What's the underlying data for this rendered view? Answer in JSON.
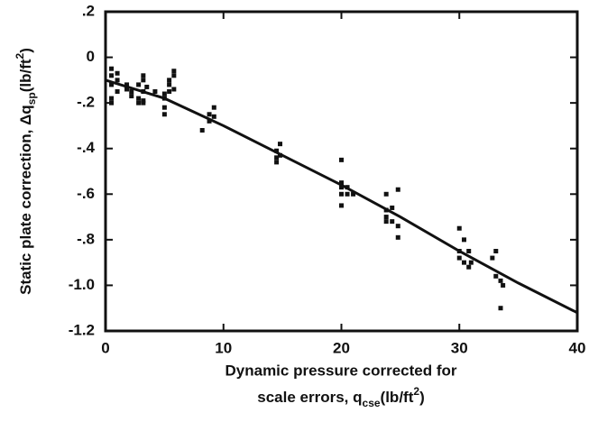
{
  "chart_data": {
    "type": "scatter",
    "ylabel_parts": [
      "Static plate correction, Δq",
      "sp",
      "(lb/ft",
      "2",
      ")"
    ],
    "xlabel_line1": "Dynamic pressure corrected for",
    "xlabel_parts": [
      "scale errors, q",
      "cse",
      "(lb/ft",
      "2",
      ")"
    ],
    "xlim": [
      0,
      40
    ],
    "ylim": [
      -1.2,
      0.2
    ],
    "xticks": [
      0,
      10,
      20,
      30,
      40
    ],
    "yticks": [
      {
        "value": 0.2,
        "label": ".2"
      },
      0,
      {
        "value": -0.2,
        "label": "-.2"
      },
      {
        "value": -0.4,
        "label": "-.4"
      },
      {
        "value": -0.6,
        "label": "-.6"
      },
      {
        "value": -0.8,
        "label": "-.8"
      },
      {
        "value": -1.0,
        "label": "-1.0"
      },
      {
        "value": -1.2,
        "label": "-1.2"
      }
    ],
    "color": "#111111",
    "points": {
      "x": [
        0.5,
        0.5,
        0.5,
        0.5,
        0.5,
        1,
        1,
        1,
        1.8,
        1.8,
        2.2,
        2.2,
        2.8,
        2.8,
        2.8,
        3.2,
        3.2,
        3.2,
        3.2,
        3.2,
        3.5,
        4.2,
        5,
        5,
        5,
        5,
        5.4,
        5.4,
        5.4,
        5.8,
        5.8,
        5.8,
        8.2,
        8.8,
        8.8,
        9.2,
        9.2,
        14.5,
        14.5,
        14.5,
        14.8,
        14.8,
        20,
        20,
        20,
        20,
        20,
        20.5,
        20.5,
        21,
        23.8,
        23.8,
        23.8,
        23.8,
        24.3,
        24.3,
        24.8,
        24.8,
        24.8,
        30,
        30,
        30,
        30.4,
        30.4,
        30.8,
        30.8,
        31,
        32.8,
        33.1,
        33.1,
        33.5,
        33.5,
        33.7
      ],
      "y": [
        -0.05,
        -0.08,
        -0.12,
        -0.18,
        -0.2,
        -0.07,
        -0.1,
        -0.15,
        -0.12,
        -0.14,
        -0.17,
        -0.15,
        -0.12,
        -0.2,
        -0.18,
        -0.08,
        -0.1,
        -0.15,
        -0.19,
        -0.2,
        -0.13,
        -0.15,
        -0.18,
        -0.22,
        -0.25,
        -0.16,
        -0.12,
        -0.15,
        -0.1,
        -0.06,
        -0.08,
        -0.14,
        -0.32,
        -0.25,
        -0.28,
        -0.22,
        -0.26,
        -0.41,
        -0.44,
        -0.46,
        -0.38,
        -0.43,
        -0.45,
        -0.55,
        -0.57,
        -0.6,
        -0.65,
        -0.57,
        -0.6,
        -0.6,
        -0.6,
        -0.67,
        -0.7,
        -0.72,
        -0.66,
        -0.72,
        -0.58,
        -0.74,
        -0.79,
        -0.75,
        -0.85,
        -0.88,
        -0.8,
        -0.9,
        -0.85,
        -0.92,
        -0.9,
        -0.88,
        -0.85,
        -0.96,
        -0.98,
        -1.1,
        -1.0
      ]
    },
    "fit": {
      "x": [
        0,
        5,
        10,
        15,
        20,
        25,
        30,
        35,
        40
      ],
      "y": [
        -0.1,
        -0.18,
        -0.3,
        -0.43,
        -0.56,
        -0.7,
        -0.85,
        -0.99,
        -1.12
      ]
    }
  }
}
